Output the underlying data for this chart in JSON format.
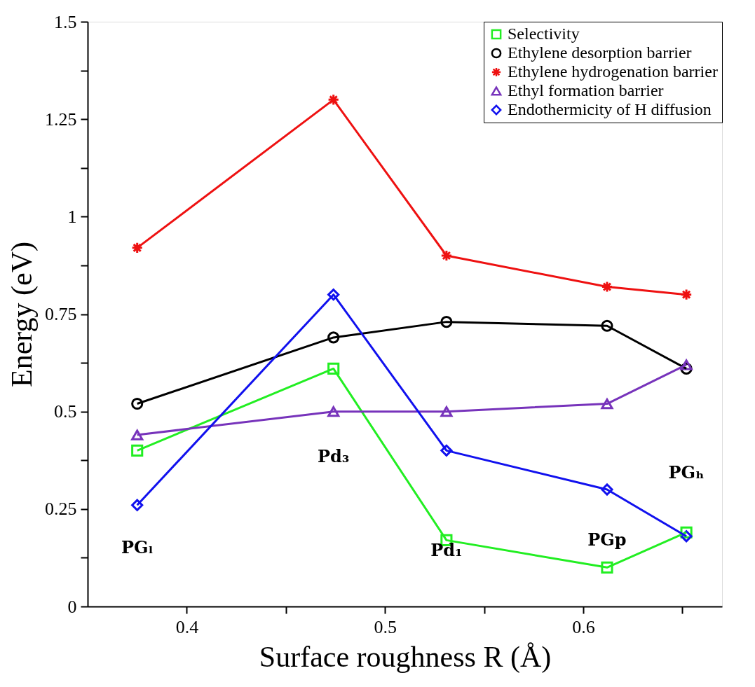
{
  "chart_data": {
    "type": "line",
    "xlabel": "Surface roughness R (Å)",
    "ylabel": "Energy (eV)",
    "x": [
      0.375,
      0.474,
      0.531,
      0.612,
      0.652
    ],
    "series": [
      {
        "name": "Selectivity",
        "color": "#22ee22",
        "marker": "square",
        "values": [
          0.4,
          0.61,
          0.17,
          0.1,
          0.19
        ]
      },
      {
        "name": "Ethylene desorption barrier",
        "color": "#000000",
        "marker": "circle",
        "values": [
          0.52,
          0.69,
          0.73,
          0.72,
          0.61
        ]
      },
      {
        "name": "Ethylene hydrogenation barrier",
        "color": "#ee1111",
        "marker": "cross",
        "values": [
          0.92,
          1.3,
          0.9,
          0.82,
          0.8
        ]
      },
      {
        "name": "Ethyl formation barrier",
        "color": "#7733bb",
        "marker": "triangle",
        "values": [
          0.44,
          0.5,
          0.5,
          0.52,
          0.62
        ]
      },
      {
        "name": "Endothermicity of H diffusion",
        "color": "#1111ee",
        "marker": "diamond",
        "values": [
          0.26,
          0.8,
          0.4,
          0.3,
          0.18
        ]
      }
    ],
    "annotations": [
      "PGₗ",
      "Pd₃",
      "Pd₁",
      "PGp",
      "PGₕ"
    ],
    "xlim": [
      0.35,
      0.67
    ],
    "xticks": [
      0.4,
      {
        "value": 0.45,
        "label": null
      },
      0.5,
      {
        "value": 0.55,
        "label": null
      },
      0.6,
      {
        "value": 0.65,
        "label": null
      }
    ],
    "ylim": [
      0,
      1.5
    ],
    "yticks": [
      0,
      {
        "value": 0.125,
        "label": null
      },
      0.25,
      {
        "value": 0.375,
        "label": null
      },
      0.5,
      {
        "value": 0.625,
        "label": null
      },
      0.75,
      {
        "value": 0.875,
        "label": null
      },
      1,
      {
        "value": 1.125,
        "label": null
      },
      1.25,
      {
        "value": 1.375,
        "label": null
      },
      1.5
    ],
    "grid": false,
    "legend": "top right",
    "line_style": "solid"
  }
}
